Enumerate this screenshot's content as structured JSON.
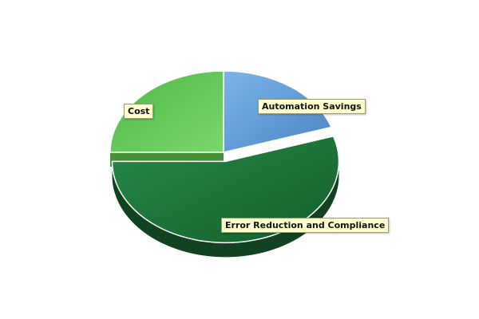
{
  "chart_data": {
    "type": "pie",
    "three_d": true,
    "legend": "none",
    "slices": [
      {
        "label": "Automation Savings",
        "value": 20,
        "color": "#5b9bd5",
        "exploded": false
      },
      {
        "label": "Error Reduction and Compliance",
        "value": 55,
        "color": "#1e7a3e",
        "exploded": true
      },
      {
        "label": "Cost",
        "value": 25,
        "color": "#66cc55",
        "exploded": false
      }
    ]
  }
}
